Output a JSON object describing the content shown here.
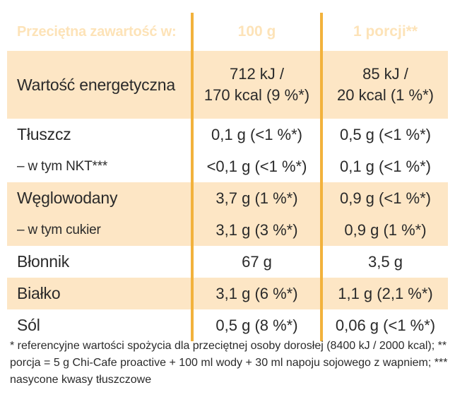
{
  "table": {
    "header": {
      "label": "Przeciętna zawartość w:",
      "col_100g": "100 g",
      "col_portion": "1 porcji**"
    },
    "rows": [
      {
        "label": "Wartość energetyczna",
        "v100_line1": "712 kJ /",
        "v100_line2": "170 kcal (9 %*)",
        "vp_line1": "85 kJ /",
        "vp_line2": "20 kcal (1 %*)"
      },
      {
        "label": "Tłuszcz",
        "v100": "0,1 g (<1 %*)",
        "vp": "0,5 g (<1 %*)"
      },
      {
        "label": "– w tym NKT***",
        "v100": "<0,1 g (<1 %*)",
        "vp": "0,1 g (<1 %*)"
      },
      {
        "label": "Węglowodany",
        "v100": "3,7 g (1 %*)",
        "vp": "0,9 g (<1 %*)"
      },
      {
        "label": "– w tym cukier",
        "v100": "3,1 g (3 %*)",
        "vp": "0,9 g (1 %*)"
      },
      {
        "label": "Błonnik",
        "v100": "67 g",
        "vp": "3,5 g"
      },
      {
        "label": "Białko",
        "v100": "3,1 g (6 %*)",
        "vp": "1,1 g (2,1 %*)"
      },
      {
        "label": "Sól",
        "v100": "0,5 g (8 %*)",
        "vp": "0,06 g (<1 %*)"
      }
    ]
  },
  "footnote": "* referencyjne wartości spożycia dla przeciętnej osoby dorosłej (8400 kJ / 2000 kcal); ** porcja = 5 g Chi-Cafe proactive + 100 ml wody + 30 ml napoju sojowego z wapniem; *** nasycone kwasy tłuszczowe",
  "colors": {
    "shade": "#fde6c5",
    "divider": "#f2b23c",
    "header_text": "#fde3b8"
  }
}
